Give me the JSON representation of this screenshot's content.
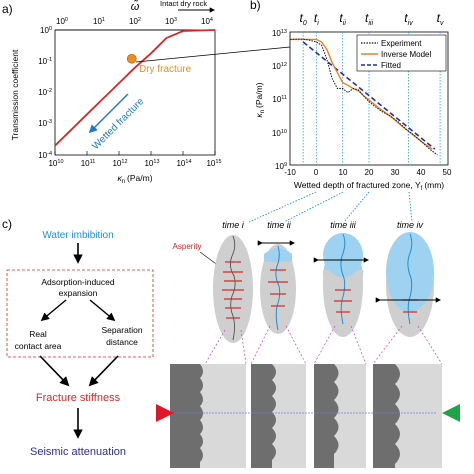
{
  "panel_a": {
    "label": "a)",
    "top_axis_symbol": "ω̃",
    "top_axis_note": "Intact dry rock",
    "ylabel": "Transmission coefficient",
    "xlabel": "κ",
    "xlabel_sub": "n",
    "xlabel_unit": "(Pa/m)",
    "dry_label": "Dry fracture",
    "wetted_label": "Wetted fracture",
    "dry_color": "#f08c1e",
    "curve_color": "#d62728",
    "wetted_color": "#1f77d0"
  },
  "panel_b": {
    "label": "b)",
    "ylabel": "κ",
    "ylabel_sub": "n",
    "ylabel_unit": "(Pa/m)",
    "xlabel": "Wetted depth of fractured zone, Y",
    "xlabel_sub": "f",
    "xlabel_unit": "(mm)",
    "legend": [
      "Experiment",
      "Inverse Model",
      "Fitted"
    ],
    "time_markers": [
      {
        "t": "t",
        "s": "0"
      },
      {
        "t": "t",
        "s": "i"
      },
      {
        "t": "t",
        "s": "ii"
      },
      {
        "t": "t",
        "s": "iii"
      },
      {
        "t": "t",
        "s": "iv"
      },
      {
        "t": "t",
        "s": "v"
      }
    ]
  },
  "panel_c": {
    "label": "c)",
    "flow": {
      "water": "Water imbibition",
      "adsorption_1": "Adsorption-induced",
      "adsorption_2": "expansion",
      "real_1": "Real",
      "real_2": "contact area",
      "sep_1": "Separation",
      "sep_2": "distance",
      "stiffness": "Fracture stiffness",
      "seismic": "Seismic attenuation"
    },
    "asperity": "Asperity",
    "times": [
      "time i",
      "time ii",
      "time iii",
      "time iv"
    ],
    "colors": {
      "water": "#1f8fd6",
      "stiffness": "#d62728",
      "seismic": "#2a2f8f",
      "box": "#d62728"
    }
  },
  "chart_data": [
    {
      "type": "line",
      "panel": "a",
      "xlabel": "κn (Pa/m)",
      "ylabel": "Transmission coefficient",
      "x_scale": "log",
      "y_scale": "log",
      "xlim": [
        10000000000.0,
        1000000000000000.0
      ],
      "ylim": [
        0.0001,
        1.0
      ],
      "x_ticks": [
        "10^10",
        "10^11",
        "10^12",
        "10^13",
        "10^14",
        "10^15"
      ],
      "y_ticks": [
        "10^-4",
        "10^-3",
        "10^-2",
        "10^-1",
        "10^0"
      ],
      "top_ticks": [
        "10^0",
        "10^1",
        "10^2",
        "10^3",
        "10^4"
      ],
      "series": [
        {
          "x": [
            10000000000.0,
            30000000000.0,
            100000000000.0,
            300000000000.0,
            1000000000000.0,
            3000000000000.0,
            10000000000000.0,
            30000000000000.0,
            100000000000000.0,
            1000000000000000.0
          ],
          "y": [
            0.0002,
            0.0006,
            0.002,
            0.006,
            0.02,
            0.06,
            0.18,
            0.55,
            0.93,
            1.0
          ]
        }
      ],
      "markers": [
        {
          "x": 2500000000000.0,
          "y": 0.12
        }
      ]
    },
    {
      "type": "line",
      "panel": "b",
      "xlabel": "Wetted depth of fractured zone, Yf (mm)",
      "ylabel": "κn (Pa/m)",
      "y_scale": "log",
      "xlim": [
        -10,
        50
      ],
      "ylim": [
        1000000000.0,
        10000000000000.0
      ],
      "x_ticks": [
        -10,
        0,
        10,
        20,
        30,
        40,
        50
      ],
      "y_ticks": [
        "10^9",
        "10^10",
        "10^11",
        "10^12",
        "10^13"
      ],
      "time_x": [
        -5,
        0,
        10,
        20,
        35,
        47
      ],
      "series": [
        {
          "name": "Experiment",
          "x": [
            -10,
            -6,
            -3,
            0,
            2,
            4,
            6,
            8,
            10,
            12,
            14,
            16,
            18,
            20,
            22,
            25,
            28,
            31,
            34,
            37,
            40,
            43,
            46
          ],
          "y": [
            6000000000000.0,
            6200000000000.0,
            5800000000000.0,
            5000000000000.0,
            4000000000000.0,
            1500000000000.0,
            400000000000.0,
            200000000000.0,
            200000000000.0,
            150000000000.0,
            200000000000.0,
            180000000000.0,
            120000000000.0,
            80000000000.0,
            60000000000.0,
            40000000000.0,
            30000000000.0,
            20000000000.0,
            12000000000.0,
            8000000000.0,
            5000000000.0,
            3000000000.0,
            2000000000.0
          ]
        },
        {
          "name": "Inverse Model",
          "x": [
            -10,
            -5,
            -2,
            0,
            2,
            4,
            6,
            8,
            10,
            12,
            14,
            16,
            18,
            20,
            24,
            28,
            32,
            36,
            40,
            44
          ],
          "y": [
            6000000000000.0,
            6000000000000.0,
            6000000000000.0,
            6000000000000.0,
            5000000000000.0,
            3000000000000.0,
            1200000000000.0,
            600000000000.0,
            300000000000.0,
            250000000000.0,
            200000000000.0,
            170000000000.0,
            120000000000.0,
            90000000000.0,
            50000000000.0,
            30000000000.0,
            16000000000.0,
            9000000000.0,
            5000000000.0,
            3000000000.0
          ]
        },
        {
          "name": "Fitted",
          "x": [
            -5,
            45
          ],
          "y": [
            5000000000000.0,
            3000000000.0
          ]
        }
      ]
    }
  ]
}
